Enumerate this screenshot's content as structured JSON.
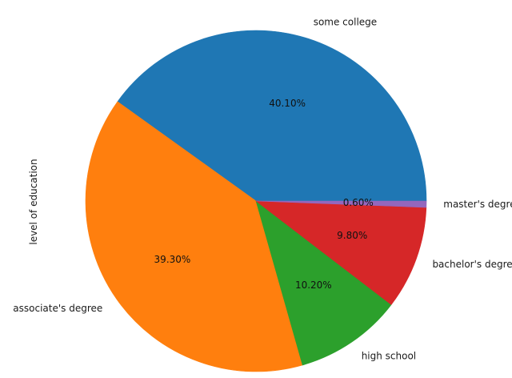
{
  "chart_data": {
    "type": "pie",
    "ylabel": "level of education",
    "start_angle_deg": 0,
    "direction": "counterclockwise",
    "slices": [
      {
        "label": "some college",
        "value": 40.1,
        "pct_text": "40.10%",
        "color": "#1f77b4"
      },
      {
        "label": "associate's degree",
        "value": 39.3,
        "pct_text": "39.30%",
        "color": "#ff7f0e"
      },
      {
        "label": "high school",
        "value": 10.2,
        "pct_text": "10.20%",
        "color": "#2ca02c"
      },
      {
        "label": "bachelor's degree",
        "value": 9.8,
        "pct_text": "9.80%",
        "color": "#d62728"
      },
      {
        "label": "master's degree",
        "value": 0.6,
        "pct_text": "0.60%",
        "color": "#9467bd"
      }
    ]
  }
}
